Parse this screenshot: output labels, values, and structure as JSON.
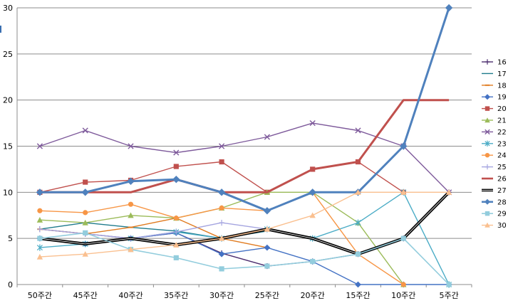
{
  "chart_data": {
    "type": "line",
    "categories": [
      "50주간",
      "45주간",
      "40주간",
      "35주간",
      "30주간",
      "25주간",
      "20주간",
      "15주간",
      "10주간",
      "5주간"
    ],
    "ylim": [
      0,
      30
    ],
    "yticks": [
      0,
      5,
      10,
      15,
      20,
      25,
      30
    ],
    "grid": "horizontal",
    "legend_position": "right",
    "series": [
      {
        "name": "16",
        "color": "#4B2C6E",
        "marker": "plus",
        "width": 1.4,
        "values": [
          6,
          5.5,
          5,
          5.6,
          3.4,
          2,
          2.5,
          3.3,
          5,
          10
        ]
      },
      {
        "name": "17",
        "color": "#1F7B8C",
        "marker": "none",
        "width": 1.4,
        "values": [
          6,
          6.7,
          6.2,
          5.8,
          5,
          5.8,
          null,
          null,
          null,
          null
        ]
      },
      {
        "name": "18",
        "color": "#E07B20",
        "marker": "dash",
        "width": 1.4,
        "values": [
          6,
          5.5,
          6.2,
          7.2,
          5,
          4,
          null,
          null,
          null,
          null
        ]
      },
      {
        "name": "19",
        "color": "#4472C4",
        "marker": "diamond",
        "width": 1.4,
        "values": [
          5,
          4.4,
          5,
          5.6,
          3.3,
          4,
          2.5,
          0,
          0,
          0
        ]
      },
      {
        "name": "20",
        "color": "#C0504D",
        "marker": "square",
        "width": 1.4,
        "values": [
          10,
          11.1,
          11.3,
          12.8,
          13.3,
          10,
          12.5,
          13.3,
          10,
          null
        ]
      },
      {
        "name": "21",
        "color": "#9BBB59",
        "marker": "triangle",
        "width": 1.4,
        "values": [
          7,
          6.7,
          7.5,
          7.2,
          8.3,
          10,
          10,
          6.7,
          0,
          null
        ]
      },
      {
        "name": "22",
        "color": "#7E5A9B",
        "marker": "x",
        "width": 1.4,
        "values": [
          15,
          16.7,
          15,
          14.3,
          15,
          16,
          17.5,
          16.7,
          15,
          10
        ]
      },
      {
        "name": "23",
        "color": "#4BACC6",
        "marker": "star",
        "width": 1.4,
        "values": [
          4,
          4.4,
          5,
          5.7,
          5,
          6,
          5,
          6.7,
          10,
          0
        ]
      },
      {
        "name": "24",
        "color": "#F79646",
        "marker": "circle",
        "width": 1.4,
        "values": [
          8,
          7.8,
          8.7,
          7.2,
          8.3,
          8,
          10,
          3.3,
          0,
          null
        ]
      },
      {
        "name": "25",
        "color": "#A5A5E0",
        "marker": "plus",
        "width": 1.4,
        "values": [
          6,
          5.5,
          5,
          5.7,
          6.7,
          6,
          null,
          null,
          null,
          null
        ]
      },
      {
        "name": "26",
        "color": "#C0504D",
        "marker": "none",
        "width": 3,
        "values": [
          10,
          10,
          10,
          11.4,
          10,
          10,
          12.5,
          13.3,
          20,
          20
        ]
      },
      {
        "name": "27",
        "color": "#000000",
        "marker": "none",
        "width": 3.2,
        "values": [
          5,
          4.4,
          5,
          4.3,
          5,
          6,
          5,
          3.3,
          5,
          10
        ]
      },
      {
        "name": "28",
        "color": "#4F81BD",
        "marker": "diamond",
        "width": 3,
        "values": [
          10,
          10,
          11.2,
          11.4,
          10,
          8,
          10,
          10,
          15,
          30
        ]
      },
      {
        "name": "29",
        "color": "#93CDDD",
        "marker": "square",
        "width": 1.6,
        "values": [
          5,
          5.6,
          3.8,
          2.9,
          1.7,
          2,
          2.5,
          3.3,
          5,
          0
        ]
      },
      {
        "name": "30",
        "color": "#FAC090",
        "marker": "triangle",
        "width": 1.4,
        "values": [
          3,
          3.3,
          3.8,
          4.3,
          5,
          6,
          7.5,
          10,
          10,
          10
        ]
      }
    ]
  }
}
